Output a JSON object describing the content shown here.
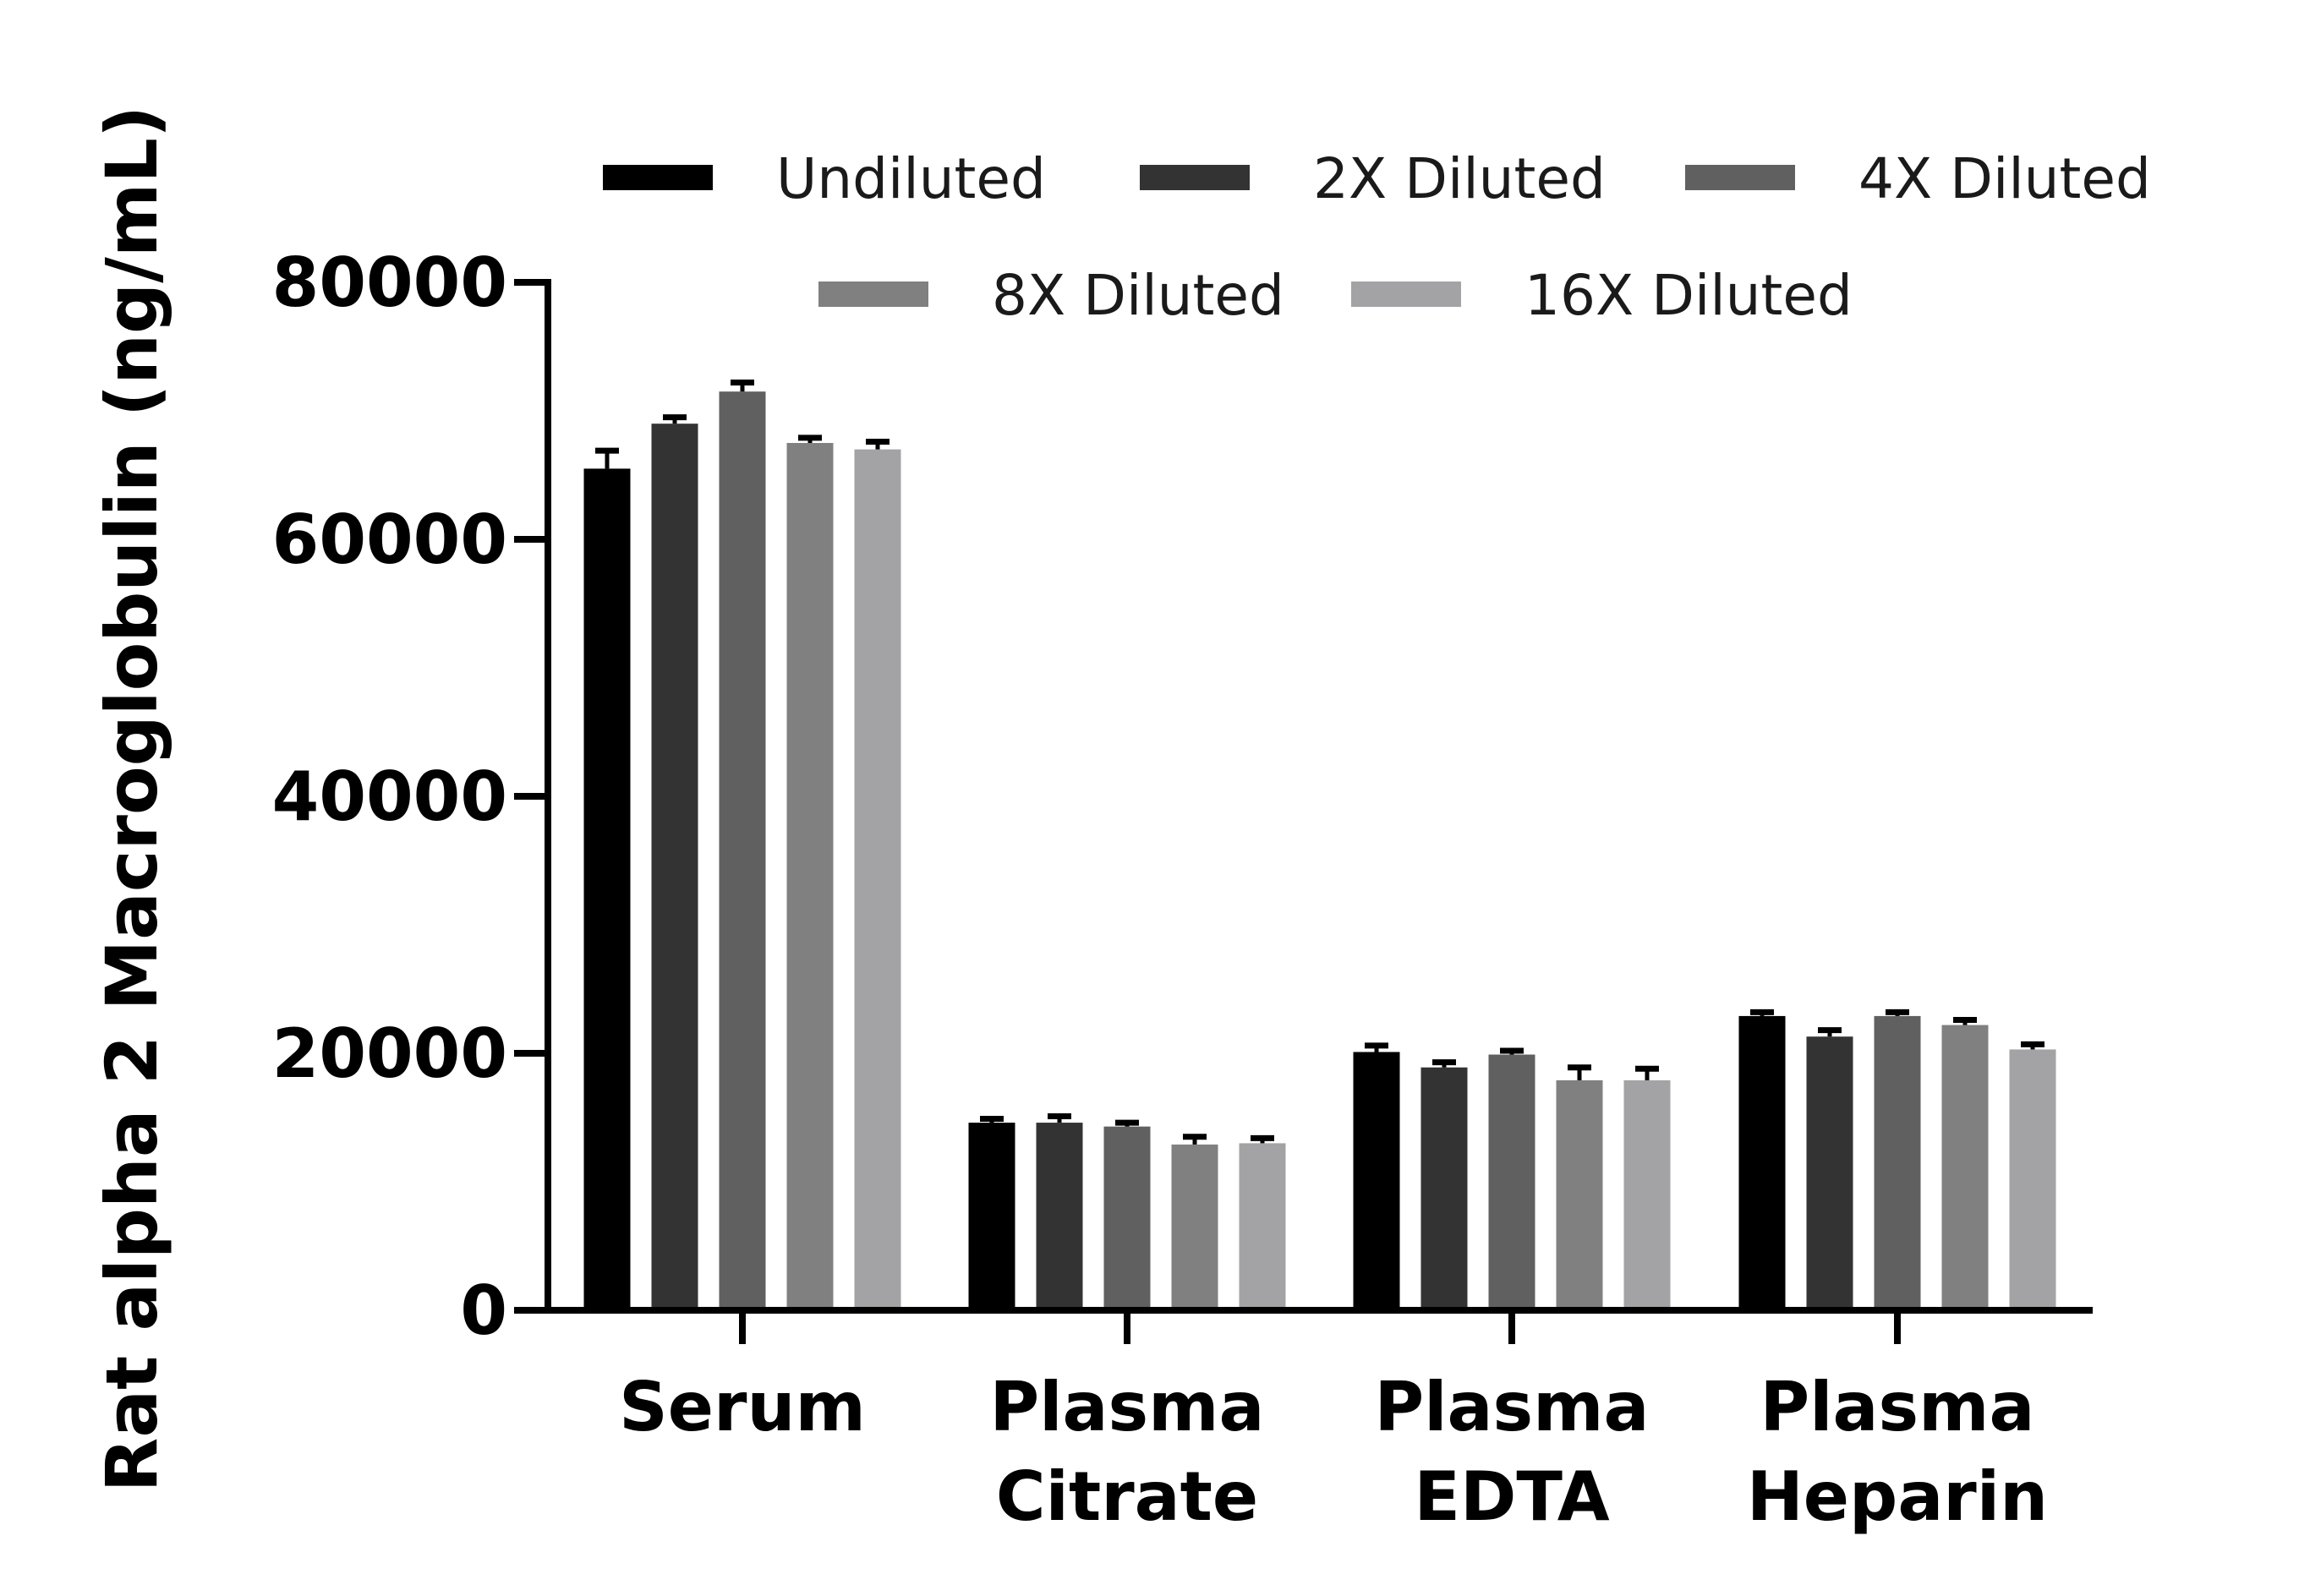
{
  "chart_data": {
    "type": "bar",
    "ylabel": "Rat alpha 2 Macroglobulin (ng/mL)",
    "xlabel": "",
    "ylim": [
      0,
      80000
    ],
    "yticks": [
      0,
      20000,
      40000,
      60000,
      80000
    ],
    "ytick_labels": [
      "0",
      "20000",
      "40000",
      "60000",
      "80000"
    ],
    "categories": [
      [
        "Serum"
      ],
      [
        "Plasma",
        "Citrate"
      ],
      [
        "Plasma",
        "EDTA"
      ],
      [
        "Plasma",
        "Heparin"
      ]
    ],
    "legend_position": "top",
    "grid": false,
    "error_bars": true,
    "series": [
      {
        "name": "Undiluted",
        "color": "#000000",
        "values": [
          65500,
          14600,
          20100,
          22900
        ],
        "errors": [
          1400,
          300,
          500,
          300
        ]
      },
      {
        "name": "2X Diluted",
        "color": "#333333",
        "values": [
          69000,
          14600,
          18900,
          21300
        ],
        "errors": [
          500,
          500,
          400,
          500
        ]
      },
      {
        "name": "4X Diluted",
        "color": "#606060",
        "values": [
          71500,
          14300,
          19900,
          22900
        ],
        "errors": [
          700,
          300,
          300,
          300
        ]
      },
      {
        "name": "8X Diluted",
        "color": "#808080",
        "values": [
          67500,
          12900,
          17900,
          22200
        ],
        "errors": [
          400,
          600,
          1000,
          400
        ]
      },
      {
        "name": "16X Diluted",
        "color": "#a3a3a6",
        "values": [
          67000,
          13000,
          17900,
          20300
        ],
        "errors": [
          600,
          400,
          900,
          400
        ]
      }
    ]
  }
}
